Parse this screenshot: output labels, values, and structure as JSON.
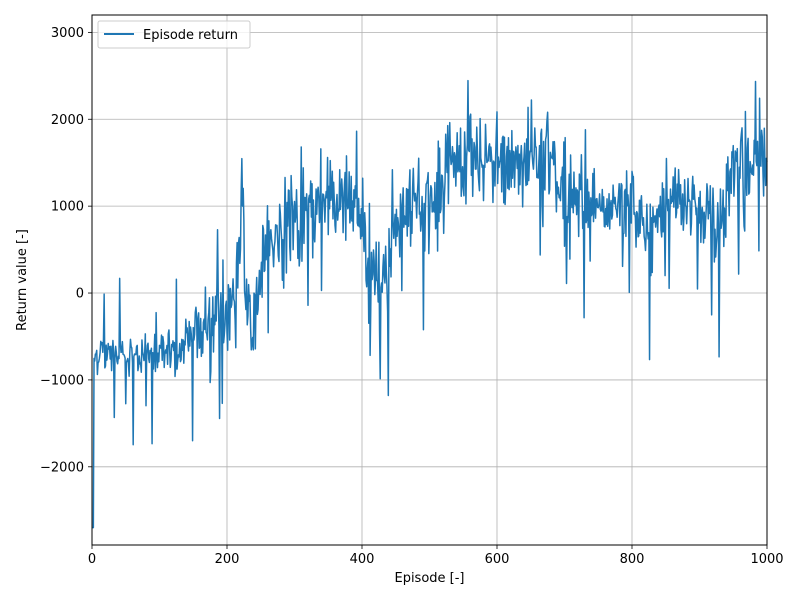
{
  "chart_data": {
    "type": "line",
    "title": "",
    "xlabel": "Episode [-]",
    "ylabel": "Return value [-]",
    "xlim": [
      0,
      1000
    ],
    "ylim": [
      -2900,
      3200
    ],
    "xticks": [
      0,
      200,
      400,
      600,
      800,
      1000
    ],
    "xtick_labels": [
      "0",
      "200",
      "400",
      "600",
      "800",
      "1000"
    ],
    "yticks": [
      -2000,
      -1000,
      0,
      1000,
      2000,
      3000
    ],
    "ytick_labels": [
      "−2000",
      "−1000",
      "0",
      "1000",
      "2000",
      "3000"
    ],
    "grid": true,
    "legend": {
      "placement": "upper-left",
      "entries": [
        "Episode return"
      ]
    },
    "series": [
      {
        "name": "Episode return",
        "color": "#1f77b4",
        "noisy": true,
        "x": [
          0,
          2,
          5,
          10,
          20,
          30,
          40,
          50,
          60,
          70,
          80,
          90,
          100,
          110,
          120,
          130,
          140,
          150,
          160,
          170,
          180,
          190,
          200,
          210,
          220,
          222,
          230,
          240,
          250,
          260,
          270,
          280,
          290,
          300,
          310,
          320,
          330,
          340,
          350,
          360,
          370,
          380,
          390,
          400,
          410,
          420,
          430,
          440,
          450,
          460,
          470,
          480,
          490,
          500,
          510,
          520,
          530,
          540,
          550,
          560,
          570,
          580,
          590,
          600,
          610,
          620,
          630,
          640,
          650,
          660,
          670,
          680,
          690,
          700,
          710,
          720,
          730,
          740,
          750,
          760,
          770,
          780,
          790,
          800,
          810,
          820,
          830,
          840,
          850,
          860,
          870,
          880,
          890,
          900,
          910,
          920,
          930,
          940,
          950,
          960,
          970,
          980,
          990,
          1000
        ],
        "values": [
          -2700,
          -700,
          -750,
          -650,
          -700,
          -700,
          -720,
          -700,
          -720,
          -720,
          -650,
          -650,
          -650,
          -620,
          -700,
          -650,
          -550,
          -450,
          -400,
          -300,
          -250,
          -200,
          -250,
          -200,
          400,
          1400,
          -100,
          -300,
          300,
          400,
          650,
          700,
          800,
          900,
          800,
          850,
          900,
          1000,
          1100,
          1100,
          1100,
          1000,
          900,
          700,
          300,
          200,
          200,
          400,
          800,
          900,
          1000,
          1000,
          1000,
          1100,
          1000,
          1200,
          1400,
          1500,
          1500,
          1600,
          1400,
          1500,
          1500,
          1500,
          1400,
          1500,
          1400,
          1500,
          1500,
          1600,
          1600,
          1600,
          1300,
          1200,
          1100,
          1100,
          1000,
          1000,
          900,
          800,
          900,
          1100,
          1000,
          1000,
          800,
          700,
          700,
          900,
          1000,
          1000,
          1000,
          900,
          1100,
          1000,
          800,
          700,
          900,
          1100,
          1500,
          1600,
          1500,
          1600,
          1500,
          1300
        ]
      }
    ]
  }
}
